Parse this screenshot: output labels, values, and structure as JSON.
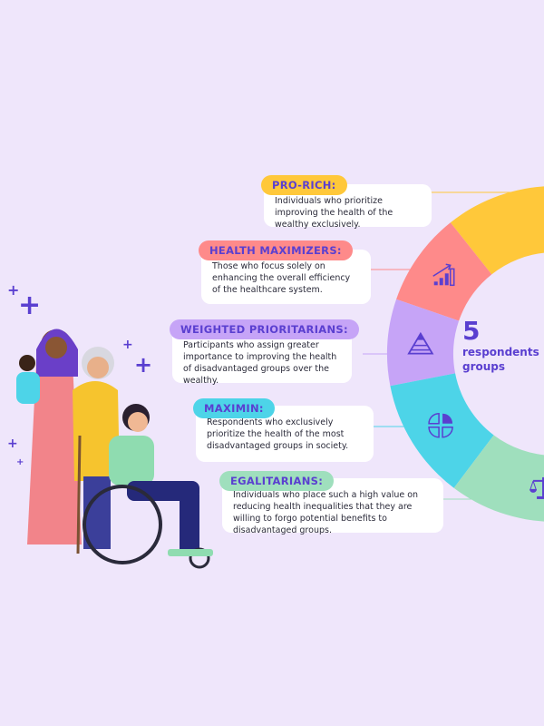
{
  "center": {
    "number": "5",
    "label_line1": "respondents",
    "label_line2": "groups"
  },
  "groups": [
    {
      "title": "PRO-RICH:",
      "description": "Individuals who prioritize improving the health of the wealthy exclusively.",
      "color": "#ffc83a",
      "icon": "award-dollar-icon"
    },
    {
      "title": "HEALTH MAXIMIZERS:",
      "description": "Those who focus solely on enhancing the overall efficiency of the healthcare system.",
      "color": "#fe8a8a",
      "icon": "growth-chart-icon"
    },
    {
      "title": "WEIGHTED PRIORITARIANS:",
      "description": "Participants who assign greater importance to improving the health of disadvantaged groups over the wealthy.",
      "color": "#c6a4f7",
      "icon": "pyramid-icon"
    },
    {
      "title": "MAXIMIN:",
      "description": "Respondents who exclusively prioritize the health of the most disadvantaged groups in society.",
      "color": "#4dd4e8",
      "icon": "pie-chart-icon"
    },
    {
      "title": "EGALITARIANS:",
      "description": "Individuals who place such a high value on reducing health inequalities that they are willing to forgo potential benefits to disadvantaged groups.",
      "color": "#9fdfbd",
      "icon": "scales-icon"
    }
  ],
  "colors": {
    "background": "#efe6fb",
    "accent": "#5a3fd0"
  }
}
